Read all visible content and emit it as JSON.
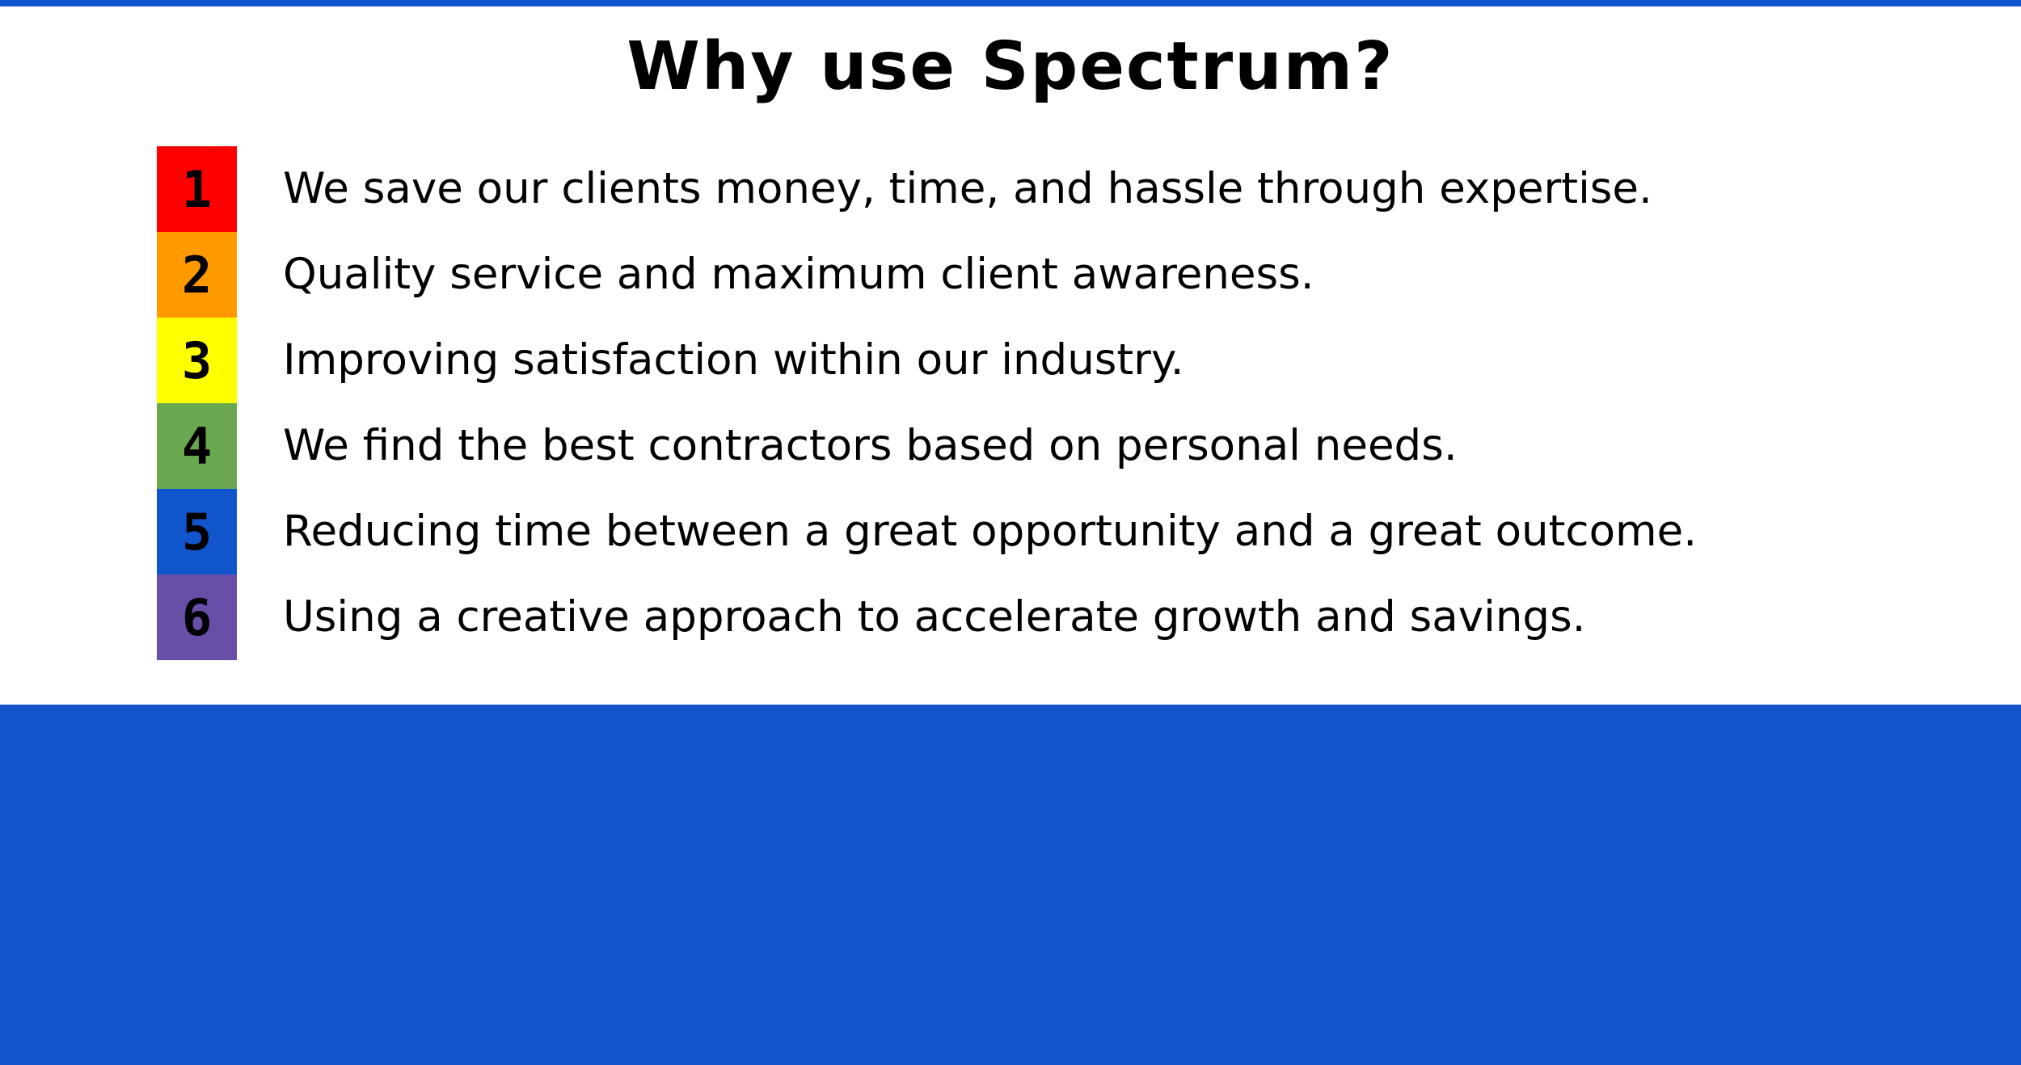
{
  "title": "Why use Spectrum?",
  "colors": {
    "accent_blue": "#1255cc",
    "background": "#ffffff",
    "text": "#000000"
  },
  "items": [
    {
      "number": "1",
      "text": "We save our clients money, time, and hassle through expertise.",
      "color": "#ff0000"
    },
    {
      "number": "2",
      "text": "Quality service and maximum client awareness.",
      "color": "#ff9900"
    },
    {
      "number": "3",
      "text": "Improving satisfaction within our industry.",
      "color": "#ffff00"
    },
    {
      "number": "4",
      "text": "We find the best contractors based on personal needs.",
      "color": "#6aa84f"
    },
    {
      "number": "5",
      "text": "Reducing time between a great opportunity and a great outcome.",
      "color": "#1155cc"
    },
    {
      "number": "6",
      "text": "Using a creative approach to accelerate growth and savings.",
      "color": "#674ea7"
    }
  ]
}
